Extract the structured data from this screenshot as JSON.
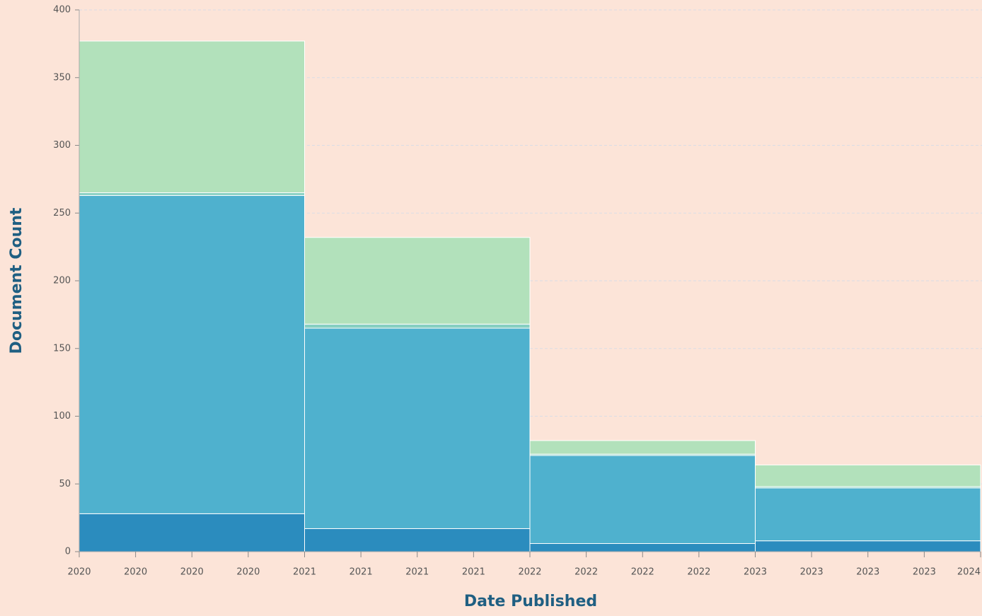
{
  "chart_data": {
    "type": "histogram",
    "x_label": "Date Published",
    "y_label": "Document Count",
    "bins": [
      2020,
      2021,
      2022,
      2023,
      2024
    ],
    "series": [
      {
        "color": "#2b8cbe",
        "values": [
          28,
          17,
          6,
          8
        ]
      },
      {
        "color": "#4fb1ce",
        "values": [
          235,
          148,
          65,
          39
        ]
      },
      {
        "color": "#86cfc2",
        "values": [
          2,
          3,
          1,
          1
        ]
      },
      {
        "color": "#b2e1bb",
        "values": [
          112,
          64,
          10,
          16
        ]
      }
    ],
    "xlim": [
      2020,
      2024
    ],
    "xticks": [
      2020,
      {
        "value": 2020.25,
        "label": "2020"
      },
      {
        "value": 2020.5,
        "label": "2020"
      },
      {
        "value": 2020.75,
        "label": "2020"
      },
      2021,
      {
        "value": 2021.25,
        "label": "2021"
      },
      {
        "value": 2021.5,
        "label": "2021"
      },
      {
        "value": 2021.75,
        "label": "2021"
      },
      2022,
      {
        "value": 2022.25,
        "label": "2022"
      },
      {
        "value": 2022.5,
        "label": "2022"
      },
      {
        "value": 2022.75,
        "label": "2022"
      },
      2023,
      {
        "value": 2023.25,
        "label": "2023"
      },
      {
        "value": 2023.5,
        "label": "2023"
      },
      {
        "value": 2023.75,
        "label": "2023"
      },
      2024
    ],
    "ylim": [
      0,
      400
    ],
    "yticks": [
      0,
      50,
      100,
      150,
      200,
      250,
      300,
      350,
      400
    ],
    "grid": true
  }
}
